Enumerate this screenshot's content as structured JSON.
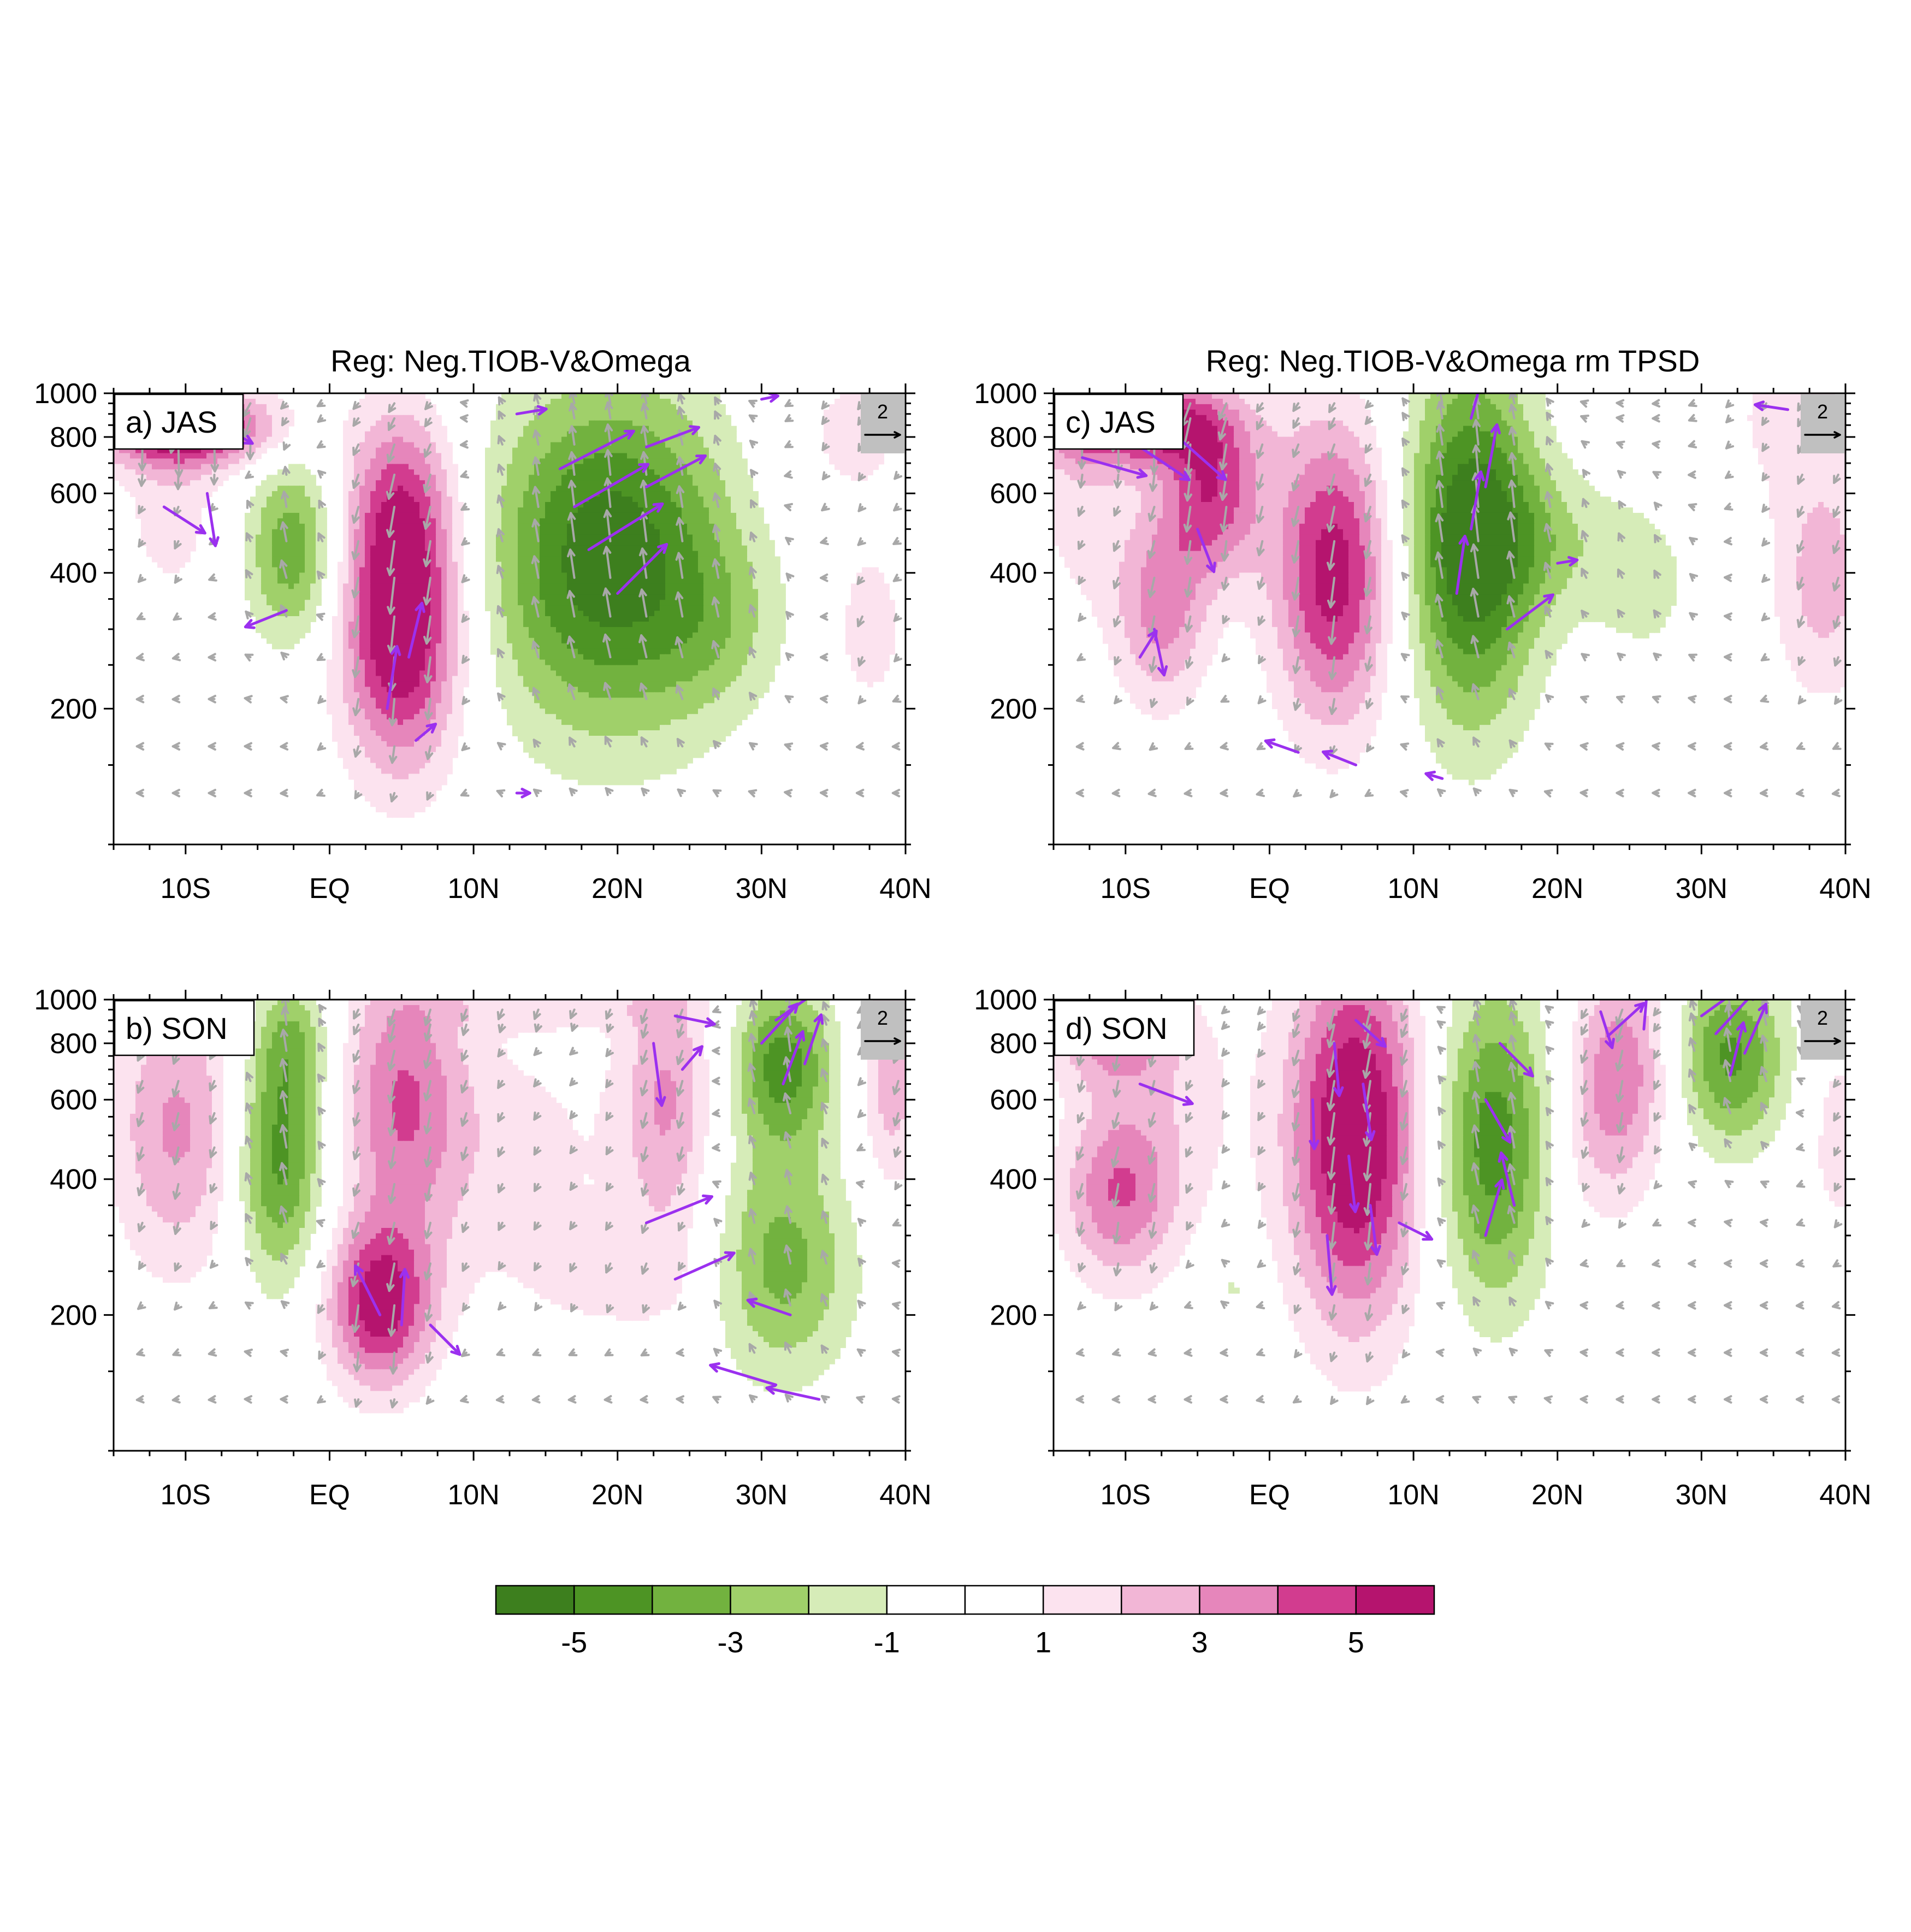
{
  "column_titles": [
    "Reg: Neg.TIOB-V&Omega",
    "Reg: Neg.TIOB-V&Omega rm TPSD"
  ],
  "colorbar": {
    "levels": [
      -6,
      -5,
      -4,
      -3,
      -2,
      -1,
      0,
      1,
      2,
      3,
      4,
      5,
      6
    ],
    "colors": [
      "#3d7f1e",
      "#4d9424",
      "#72b23f",
      "#a0d06a",
      "#d6ecb8",
      "#ffffff",
      "#ffffff",
      "#fce3ef",
      "#f2b6d6",
      "#e686bb",
      "#d23c8f",
      "#b5146e"
    ],
    "tick_labels": [
      "-5",
      "-3",
      "-1",
      "1",
      "3",
      "5"
    ],
    "tick_values": [
      -5,
      -3,
      -1,
      1,
      3,
      5
    ]
  },
  "vector_colors": {
    "significant": "#9b30ef",
    "other": "#a8a8a8"
  },
  "reference_vector": {
    "label": "2",
    "magnitude": 2
  },
  "chart_data": [
    {
      "type": "heatmap",
      "label": "a) JAS",
      "x_ticks": [
        -10,
        0,
        10,
        20,
        30,
        40
      ],
      "x_tick_labels": [
        "10S",
        "EQ",
        "10N",
        "20N",
        "30N",
        "40N"
      ],
      "y_ticks": [
        200,
        400,
        600,
        800,
        1000
      ],
      "y_tick_labels": [
        "200",
        "400",
        "600",
        "800",
        "1000"
      ],
      "xlim": [
        -15,
        40
      ],
      "ylim": [
        1000,
        100
      ],
      "y_scale": "log",
      "blobs": [
        {
          "x": -10,
          "p": 840,
          "sx": 4.5,
          "sy": 0.14,
          "v": 6.2
        },
        {
          "x": -11,
          "p": 550,
          "sx": 2.5,
          "sy": 0.35,
          "v": 1.5
        },
        {
          "x": -2.5,
          "p": 450,
          "sx": 2.3,
          "sy": 0.34,
          "v": -3.8
        },
        {
          "x": 5,
          "p": 300,
          "sx": 3.0,
          "sy": 0.5,
          "v": 6.5
        },
        {
          "x": 5,
          "p": 600,
          "sx": 2.8,
          "sy": 0.35,
          "v": 3.0
        },
        {
          "x": 19.5,
          "p": 430,
          "sx": 6.0,
          "sy": 0.62,
          "v": -5.8
        },
        {
          "x": 27,
          "p": 300,
          "sx": 3.0,
          "sy": 0.3,
          "v": -1.2
        },
        {
          "x": 37.5,
          "p": 300,
          "sx": 1.5,
          "sy": 0.25,
          "v": 2.0
        },
        {
          "x": 36,
          "p": 800,
          "sx": 4.0,
          "sy": 0.35,
          "v": 1.3
        }
      ],
      "sig_arrows": [
        {
          "x": -12,
          "p": 830,
          "u": 4.0,
          "w": -0.8
        },
        {
          "x": -9,
          "p": 900,
          "u": 3.2,
          "w": -1.8
        },
        {
          "x": -8.5,
          "p": 600,
          "u": 0.5,
          "w": -3.2
        },
        {
          "x": -11.5,
          "p": 560,
          "u": 2.5,
          "w": -1.6
        },
        {
          "x": 6,
          "p": 170,
          "u": 1.2,
          "w": 1.0
        },
        {
          "x": 4,
          "p": 200,
          "u": 0.6,
          "w": 3.8
        },
        {
          "x": 5.5,
          "p": 260,
          "u": 0.8,
          "w": 3.3
        },
        {
          "x": -3,
          "p": 330,
          "u": -2.5,
          "w": -1.0
        },
        {
          "x": 13,
          "p": 130,
          "u": 0.8,
          "w": 0
        },
        {
          "x": 16,
          "p": 680,
          "u": 4.5,
          "w": 2.3
        },
        {
          "x": 17,
          "p": 560,
          "u": 4.5,
          "w": 2.6
        },
        {
          "x": 18,
          "p": 450,
          "u": 4.5,
          "w": 2.8
        },
        {
          "x": 20,
          "p": 360,
          "u": 3.0,
          "w": 3.0
        },
        {
          "x": 22,
          "p": 620,
          "u": 3.6,
          "w": 1.9
        },
        {
          "x": 22,
          "p": 760,
          "u": 3.2,
          "w": 1.2
        },
        {
          "x": 13,
          "p": 900,
          "u": 1.8,
          "w": 0.3
        },
        {
          "x": 30,
          "p": 970,
          "u": 1.0,
          "w": 0.2
        }
      ]
    },
    {
      "type": "heatmap",
      "label": "b) SON",
      "x_ticks": [
        -10,
        0,
        10,
        20,
        30,
        40
      ],
      "x_tick_labels": [
        "10S",
        "EQ",
        "10N",
        "20N",
        "30N",
        "40N"
      ],
      "y_ticks": [
        200,
        400,
        600,
        800,
        1000
      ],
      "y_tick_labels": [
        "200",
        "400",
        "600",
        "800",
        "1000"
      ],
      "xlim": [
        -15,
        40
      ],
      "ylim": [
        1000,
        100
      ],
      "y_scale": "log",
      "blobs": [
        {
          "x": -10.5,
          "p": 520,
          "sx": 3.3,
          "sy": 0.52,
          "v": 3.2
        },
        {
          "x": -3.5,
          "p": 450,
          "sx": 2.2,
          "sy": 0.45,
          "v": -4.6
        },
        {
          "x": -2.5,
          "p": 820,
          "sx": 1.8,
          "sy": 0.22,
          "v": -2.2
        },
        {
          "x": 3.5,
          "p": 210,
          "sx": 2.6,
          "sy": 0.3,
          "v": 5.5
        },
        {
          "x": 5,
          "p": 620,
          "sx": 3.0,
          "sy": 0.5,
          "v": 3.6
        },
        {
          "x": 12,
          "p": 450,
          "sx": 6.0,
          "sy": 0.5,
          "v": 1.4
        },
        {
          "x": 20,
          "p": 240,
          "sx": 4.5,
          "sy": 0.2,
          "v": 1.2
        },
        {
          "x": 23.5,
          "p": 600,
          "sx": 2.3,
          "sy": 0.55,
          "v": 3.0
        },
        {
          "x": 31.5,
          "p": 260,
          "sx": 3.5,
          "sy": 0.42,
          "v": -3.4
        },
        {
          "x": 31.5,
          "p": 720,
          "sx": 2.5,
          "sy": 0.3,
          "v": -4.4
        },
        {
          "x": 39,
          "p": 650,
          "sx": 1.6,
          "sy": 0.4,
          "v": 2.6
        },
        {
          "x": 15,
          "p": 960,
          "sx": 6.0,
          "sy": 0.08,
          "v": 1.3
        }
      ],
      "sig_arrows": [
        {
          "x": 3.5,
          "p": 200,
          "u": -1.5,
          "w": 3.0
        },
        {
          "x": 5,
          "p": 190,
          "u": 0.2,
          "w": 3.4
        },
        {
          "x": 7,
          "p": 190,
          "u": 1.8,
          "w": -1.8
        },
        {
          "x": 22,
          "p": 320,
          "u": 4.0,
          "w": 1.6
        },
        {
          "x": 24,
          "p": 240,
          "u": 3.6,
          "w": 1.6
        },
        {
          "x": 22.5,
          "p": 800,
          "u": 0.5,
          "w": -3.8
        },
        {
          "x": 24.5,
          "p": 700,
          "u": 1.2,
          "w": 1.4
        },
        {
          "x": 24,
          "p": 920,
          "u": 2.4,
          "w": -0.5
        },
        {
          "x": 31,
          "p": 140,
          "u": -4.0,
          "w": 1.2
        },
        {
          "x": 34,
          "p": 130,
          "u": -3.2,
          "w": 0.7
        },
        {
          "x": 32,
          "p": 200,
          "u": -2.6,
          "w": 0.9
        },
        {
          "x": 31.5,
          "p": 650,
          "u": 1.2,
          "w": 3.2
        },
        {
          "x": 30,
          "p": 800,
          "u": 2.2,
          "w": 2.4
        },
        {
          "x": 33,
          "p": 720,
          "u": 1.0,
          "w": 3.0
        },
        {
          "x": 31,
          "p": 900,
          "u": 2.7,
          "w": 1.9
        }
      ]
    },
    {
      "type": "heatmap",
      "label": "c) JAS",
      "x_ticks": [
        -10,
        0,
        10,
        20,
        30,
        40
      ],
      "x_tick_labels": [
        "10S",
        "EQ",
        "10N",
        "20N",
        "30N",
        "40N"
      ],
      "y_ticks": [
        200,
        400,
        600,
        800,
        1000
      ],
      "y_tick_labels": [
        "200",
        "400",
        "600",
        "800",
        "1000"
      ],
      "xlim": [
        -15,
        40
      ],
      "ylim": [
        1000,
        100
      ],
      "y_scale": "log",
      "blobs": [
        {
          "x": -9.5,
          "p": 860,
          "sx": 4.5,
          "sy": 0.15,
          "v": 5.6
        },
        {
          "x": -4,
          "p": 600,
          "sx": 2.5,
          "sy": 0.3,
          "v": 4.6
        },
        {
          "x": -7.5,
          "p": 330,
          "sx": 2.3,
          "sy": 0.35,
          "v": 3.4
        },
        {
          "x": -13,
          "p": 600,
          "sx": 2.5,
          "sy": 0.45,
          "v": 1.5
        },
        {
          "x": 4.5,
          "p": 400,
          "sx": 3.0,
          "sy": 0.55,
          "v": 5.6
        },
        {
          "x": 14,
          "p": 470,
          "sx": 3.3,
          "sy": 0.65,
          "v": -6.0
        },
        {
          "x": 19,
          "p": 470,
          "sx": 3.5,
          "sy": 0.25,
          "v": -1.6
        },
        {
          "x": 26,
          "p": 380,
          "sx": 3.0,
          "sy": 0.35,
          "v": -1.3
        },
        {
          "x": 38.5,
          "p": 380,
          "sx": 2.5,
          "sy": 0.42,
          "v": 2.5
        },
        {
          "x": 36,
          "p": 900,
          "sx": 4.0,
          "sy": 0.35,
          "v": 1.2
        }
      ],
      "sig_arrows": [
        {
          "x": -11,
          "p": 850,
          "u": 3.6,
          "w": -1.3
        },
        {
          "x": -13,
          "p": 720,
          "u": 3.9,
          "w": -1.1
        },
        {
          "x": -9,
          "p": 760,
          "u": 3.0,
          "w": -2.0
        },
        {
          "x": -6,
          "p": 780,
          "u": 2.6,
          "w": -2.3
        },
        {
          "x": -8,
          "p": 300,
          "u": 0.6,
          "w": -2.8
        },
        {
          "x": -9,
          "p": 260,
          "u": 1.0,
          "w": 1.6
        },
        {
          "x": -5,
          "p": 500,
          "u": 1.0,
          "w": -2.6
        },
        {
          "x": 6,
          "p": 150,
          "u": -2.0,
          "w": 0.8
        },
        {
          "x": 2,
          "p": 160,
          "u": -2.0,
          "w": 0.7
        },
        {
          "x": 13,
          "p": 360,
          "u": 0.5,
          "w": 3.5
        },
        {
          "x": 14,
          "p": 500,
          "u": 0.6,
          "w": 3.5
        },
        {
          "x": 15,
          "p": 620,
          "u": 0.7,
          "w": 3.8
        },
        {
          "x": 16.5,
          "p": 300,
          "u": 2.8,
          "w": 2.1
        },
        {
          "x": 14,
          "p": 880,
          "u": 0.9,
          "w": 3.3
        },
        {
          "x": 20,
          "p": 420,
          "u": 1.2,
          "w": 0.2
        },
        {
          "x": 12,
          "p": 140,
          "u": -1.0,
          "w": 0.3
        },
        {
          "x": 36,
          "p": 920,
          "u": -2.0,
          "w": 0.3
        },
        {
          "x": 39.5,
          "p": 850,
          "u": -1.0,
          "w": 0.1
        }
      ]
    },
    {
      "type": "heatmap",
      "label": "d) SON",
      "x_ticks": [
        -10,
        0,
        10,
        20,
        30,
        40
      ],
      "x_tick_labels": [
        "10S",
        "EQ",
        "10N",
        "20N",
        "30N",
        "40N"
      ],
      "y_ticks": [
        200,
        400,
        600,
        800,
        1000
      ],
      "y_tick_labels": [
        "200",
        "400",
        "600",
        "800",
        "1000"
      ],
      "xlim": [
        -15,
        40
      ],
      "ylim": [
        1000,
        100
      ],
      "y_scale": "log",
      "blobs": [
        {
          "x": -10.5,
          "p": 370,
          "sx": 2.8,
          "sy": 0.32,
          "v": 3.6
        },
        {
          "x": -11,
          "p": 820,
          "sx": 3.0,
          "sy": 0.18,
          "v": 2.8
        },
        {
          "x": -7,
          "p": 600,
          "sx": 4.0,
          "sy": 0.5,
          "v": 1.3
        },
        {
          "x": 6,
          "p": 500,
          "sx": 3.3,
          "sy": 0.68,
          "v": 6.5
        },
        {
          "x": 15.5,
          "p": 480,
          "sx": 3.0,
          "sy": 0.58,
          "v": -4.6
        },
        {
          "x": 24.5,
          "p": 720,
          "sx": 2.5,
          "sy": 0.38,
          "v": 3.6
        },
        {
          "x": 32,
          "p": 750,
          "sx": 2.8,
          "sy": 0.33,
          "v": -4.2
        },
        {
          "x": 39.5,
          "p": 500,
          "sx": 1.7,
          "sy": 0.4,
          "v": 1.5
        },
        {
          "x": -2.5,
          "p": 230,
          "sx": 1.2,
          "sy": 0.12,
          "v": -1.3
        },
        {
          "x": 22.5,
          "p": 450,
          "sx": 2.5,
          "sy": 0.35,
          "v": 1.2
        }
      ],
      "sig_arrows": [
        {
          "x": 4,
          "p": 300,
          "u": 0.3,
          "w": -3.6
        },
        {
          "x": 5.5,
          "p": 450,
          "u": 0.4,
          "w": -3.4
        },
        {
          "x": 6.5,
          "p": 650,
          "u": 0.5,
          "w": -3.4
        },
        {
          "x": 4.5,
          "p": 800,
          "u": 0.3,
          "w": -3.2
        },
        {
          "x": 7,
          "p": 350,
          "u": 0.4,
          "w": -3.0
        },
        {
          "x": 6,
          "p": 900,
          "u": 1.8,
          "w": -1.6
        },
        {
          "x": 3,
          "p": 600,
          "u": 0.1,
          "w": -3.0
        },
        {
          "x": 15,
          "p": 300,
          "u": 1.0,
          "w": 3.4
        },
        {
          "x": 17,
          "p": 350,
          "u": -0.8,
          "w": 3.2
        },
        {
          "x": 15,
          "p": 600,
          "u": 1.5,
          "w": -2.6
        },
        {
          "x": 16,
          "p": 800,
          "u": 2.0,
          "w": -2.0
        },
        {
          "x": -9,
          "p": 650,
          "u": 3.2,
          "w": -1.2
        },
        {
          "x": 23.5,
          "p": 830,
          "u": 2.2,
          "w": 2.0
        },
        {
          "x": 23,
          "p": 940,
          "u": 0.7,
          "w": -2.2
        },
        {
          "x": 26,
          "p": 860,
          "u": 0.3,
          "w": 3.6
        },
        {
          "x": 31,
          "p": 840,
          "u": 2.4,
          "w": 2.6
        },
        {
          "x": 33,
          "p": 760,
          "u": 1.3,
          "w": 3.0
        },
        {
          "x": 32,
          "p": 680,
          "u": 0.8,
          "w": 3.2
        },
        {
          "x": 30,
          "p": 920,
          "u": 2.5,
          "w": 1.8
        },
        {
          "x": 9,
          "p": 320,
          "u": 2.0,
          "w": -1.0
        }
      ]
    }
  ]
}
